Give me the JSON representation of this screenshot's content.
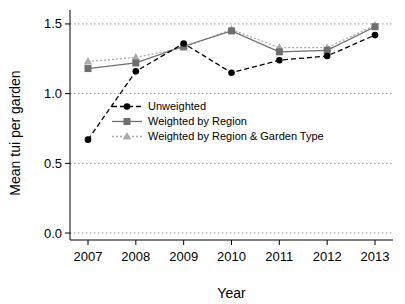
{
  "chart_data": {
    "type": "line",
    "x_label": "Year",
    "y_label": "Mean tui per garden",
    "categories": [
      "2007",
      "2008",
      "2009",
      "2010",
      "2011",
      "2012",
      "2013"
    ],
    "series": [
      {
        "name": "Unweighted",
        "color": "#000000",
        "line_style": "dashed",
        "marker": "circle",
        "values": [
          0.67,
          1.16,
          1.36,
          1.15,
          1.24,
          1.27,
          1.42
        ]
      },
      {
        "name": "Weighted by Region",
        "color": "#6e6e6e",
        "line_style": "solid",
        "marker": "square",
        "values": [
          1.18,
          1.22,
          1.34,
          1.45,
          1.3,
          1.31,
          1.48
        ]
      },
      {
        "name": "Weighted by Region & Garden Type",
        "color": "#ababab",
        "line_style": "dotted",
        "marker": "triangle",
        "values": [
          1.23,
          1.26,
          1.33,
          1.46,
          1.33,
          1.33,
          1.49
        ]
      }
    ],
    "ylim": [
      -0.05,
      1.6
    ],
    "yticks": [
      {
        "value": 0,
        "label": "0.0"
      },
      {
        "value": 0.5,
        "label": "0.5"
      },
      {
        "value": 1,
        "label": "1.0"
      },
      {
        "value": 1.5,
        "label": "1.5"
      }
    ],
    "grid": true,
    "legend": "left"
  }
}
